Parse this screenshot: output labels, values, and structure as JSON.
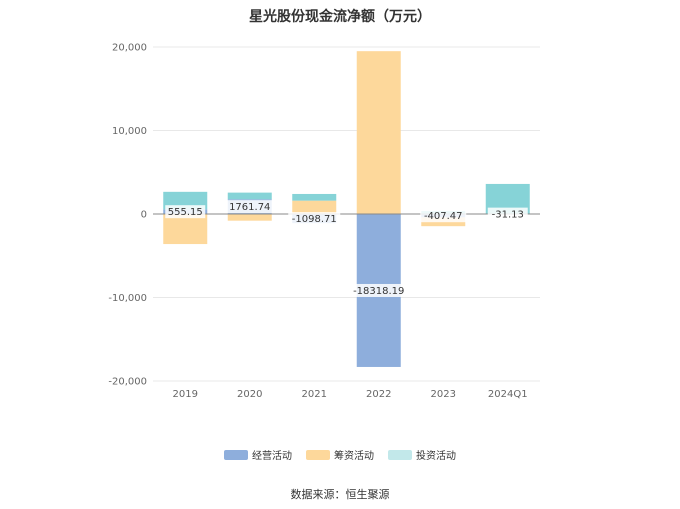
{
  "chart_data": {
    "type": "bar",
    "stacked": true,
    "title": "星光股份现金流净额（万元）",
    "categories": [
      "2019",
      "2020",
      "2021",
      "2022",
      "2023",
      "2024Q1"
    ],
    "ylim": [
      -20000,
      20000
    ],
    "yticks": [
      20000,
      10000,
      0,
      -10000,
      -20000
    ],
    "ytick_labels": [
      "20,000",
      "10,000",
      "0",
      "-10,000",
      "-20,000"
    ],
    "grid": true,
    "legend_position": "bottom",
    "series": [
      {
        "name": "经营活动",
        "color": "#8eaedc",
        "values": [
          555.15,
          1761.74,
          -1098.71,
          -18318.19,
          -407.47,
          -31.13
        ],
        "labels": [
          "555.15",
          "1761.74",
          "-1098.71",
          "-18318.19",
          "-407.47",
          "-31.13"
        ]
      },
      {
        "name": "筹资活动",
        "color": "#fdd89b",
        "values": [
          -3600,
          -800,
          1600,
          19500,
          -1050,
          0
        ]
      },
      {
        "name": "投资活动",
        "color": "#86d3d7",
        "values": [
          2100,
          800,
          800,
          0,
          350,
          3600
        ]
      }
    ]
  },
  "legend": [
    {
      "label": "经营活动",
      "color": "#8eaedc"
    },
    {
      "label": "筹资活动",
      "color": "#fdd89b"
    },
    {
      "label": "投资活动",
      "color": "#c2e8ea"
    }
  ],
  "source": "数据来源：恒生聚源"
}
